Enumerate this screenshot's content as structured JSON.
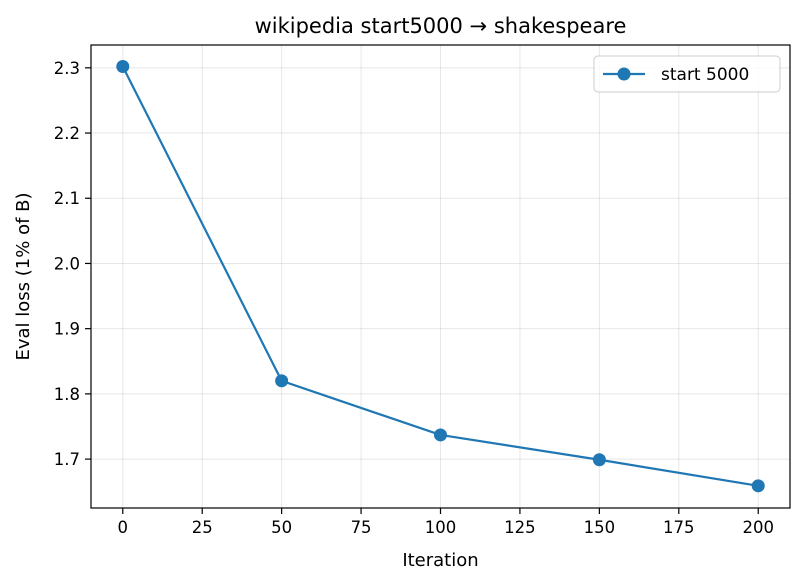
{
  "chart_data": {
    "type": "line",
    "title": "wikipedia start5000 → shakespeare",
    "xlabel": "Iteration",
    "ylabel": "Eval loss (1% of B)",
    "xlim": [
      -10,
      210
    ],
    "ylim": [
      1.625,
      2.335
    ],
    "xticks": [
      0,
      25,
      50,
      75,
      100,
      125,
      150,
      175,
      200
    ],
    "yticks": [
      1.7,
      1.8,
      1.9,
      2.0,
      2.1,
      2.2,
      2.3
    ],
    "grid": true,
    "legend_position": "top-right",
    "series": [
      {
        "name": "start 5000",
        "color": "#1f77b4",
        "marker": "circle",
        "x": [
          0,
          50,
          100,
          150,
          200
        ],
        "y": [
          2.302,
          1.82,
          1.737,
          1.699,
          1.659
        ]
      }
    ]
  }
}
